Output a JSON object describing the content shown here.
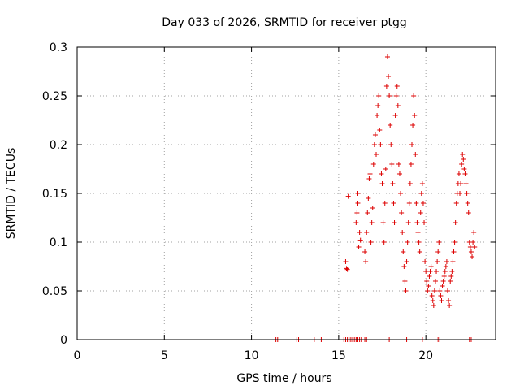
{
  "chart_data": {
    "type": "scatter",
    "title": "Day 033 of 2026, SRMTID for receiver ptgg",
    "xlabel": "GPS time / hours",
    "ylabel": "SRMTID / TECUs",
    "xlim": [
      0,
      24
    ],
    "ylim": [
      0,
      0.3
    ],
    "xticks": [
      0,
      5,
      10,
      15,
      20
    ],
    "xtick_labels": [
      "0",
      "5",
      "10",
      "15",
      "20"
    ],
    "yticks": [
      0,
      0.05,
      0.1,
      0.15,
      0.2,
      0.25,
      0.3
    ],
    "ytick_labels": [
      "0",
      "0.05",
      "0.1",
      "0.15",
      "0.2",
      "0.25",
      "0.3"
    ],
    "grid": true,
    "marker": "+",
    "series": [
      {
        "name": "SRMTID",
        "color": "#dd0000",
        "points": [
          [
            11.4,
            0
          ],
          [
            11.5,
            0
          ],
          [
            12.6,
            0
          ],
          [
            12.7,
            0
          ],
          [
            13.6,
            0
          ],
          [
            14.0,
            0
          ],
          [
            15.3,
            0
          ],
          [
            15.4,
            0
          ],
          [
            15.5,
            0
          ],
          [
            15.6,
            0
          ],
          [
            15.7,
            0
          ],
          [
            15.8,
            0
          ],
          [
            15.9,
            0
          ],
          [
            16.0,
            0
          ],
          [
            16.1,
            0
          ],
          [
            16.2,
            0
          ],
          [
            16.3,
            0
          ],
          [
            16.5,
            0
          ],
          [
            16.6,
            0
          ],
          [
            17.9,
            0
          ],
          [
            18.9,
            0
          ],
          [
            19.8,
            0
          ],
          [
            20.7,
            0
          ],
          [
            20.8,
            0
          ],
          [
            22.5,
            0
          ],
          [
            22.6,
            0
          ],
          [
            15.4,
            0.08
          ],
          [
            15.45,
            0.073
          ],
          [
            15.5,
            0.072
          ],
          [
            15.55,
            0.147
          ],
          [
            16.0,
            0.12
          ],
          [
            16.05,
            0.13
          ],
          [
            16.1,
            0.14
          ],
          [
            16.1,
            0.15
          ],
          [
            16.15,
            0.095
          ],
          [
            16.2,
            0.11
          ],
          [
            16.25,
            0.102
          ],
          [
            16.5,
            0.09
          ],
          [
            16.55,
            0.08
          ],
          [
            16.6,
            0.11
          ],
          [
            16.65,
            0.13
          ],
          [
            16.7,
            0.145
          ],
          [
            16.75,
            0.165
          ],
          [
            16.8,
            0.17
          ],
          [
            16.85,
            0.1
          ],
          [
            16.9,
            0.12
          ],
          [
            16.95,
            0.135
          ],
          [
            17.0,
            0.18
          ],
          [
            17.05,
            0.2
          ],
          [
            17.1,
            0.21
          ],
          [
            17.15,
            0.19
          ],
          [
            17.2,
            0.23
          ],
          [
            17.25,
            0.24
          ],
          [
            17.3,
            0.25
          ],
          [
            17.35,
            0.215
          ],
          [
            17.4,
            0.2
          ],
          [
            17.45,
            0.17
          ],
          [
            17.5,
            0.16
          ],
          [
            17.55,
            0.12
          ],
          [
            17.6,
            0.1
          ],
          [
            17.65,
            0.14
          ],
          [
            17.7,
            0.175
          ],
          [
            17.75,
            0.26
          ],
          [
            17.8,
            0.29
          ],
          [
            17.85,
            0.27
          ],
          [
            17.9,
            0.25
          ],
          [
            17.95,
            0.22
          ],
          [
            18.0,
            0.2
          ],
          [
            18.05,
            0.18
          ],
          [
            18.1,
            0.16
          ],
          [
            18.15,
            0.14
          ],
          [
            18.2,
            0.12
          ],
          [
            18.25,
            0.23
          ],
          [
            18.3,
            0.25
          ],
          [
            18.35,
            0.26
          ],
          [
            18.4,
            0.24
          ],
          [
            18.45,
            0.18
          ],
          [
            18.5,
            0.17
          ],
          [
            18.55,
            0.15
          ],
          [
            18.6,
            0.13
          ],
          [
            18.65,
            0.11
          ],
          [
            18.7,
            0.09
          ],
          [
            18.75,
            0.075
          ],
          [
            18.8,
            0.06
          ],
          [
            18.85,
            0.05
          ],
          [
            18.9,
            0.08
          ],
          [
            18.95,
            0.1
          ],
          [
            19.0,
            0.12
          ],
          [
            19.05,
            0.14
          ],
          [
            19.1,
            0.16
          ],
          [
            19.15,
            0.18
          ],
          [
            19.2,
            0.2
          ],
          [
            19.25,
            0.22
          ],
          [
            19.3,
            0.25
          ],
          [
            19.35,
            0.23
          ],
          [
            19.4,
            0.19
          ],
          [
            19.45,
            0.14
          ],
          [
            19.5,
            0.12
          ],
          [
            19.55,
            0.11
          ],
          [
            19.6,
            0.1
          ],
          [
            19.65,
            0.09
          ],
          [
            19.7,
            0.13
          ],
          [
            19.75,
            0.15
          ],
          [
            19.8,
            0.16
          ],
          [
            19.85,
            0.14
          ],
          [
            19.9,
            0.12
          ],
          [
            19.95,
            0.08
          ],
          [
            20.0,
            0.07
          ],
          [
            20.05,
            0.06
          ],
          [
            20.1,
            0.05
          ],
          [
            20.15,
            0.055
          ],
          [
            20.2,
            0.065
          ],
          [
            20.25,
            0.07
          ],
          [
            20.3,
            0.075
          ],
          [
            20.35,
            0.045
          ],
          [
            20.4,
            0.04
          ],
          [
            20.45,
            0.035
          ],
          [
            20.5,
            0.05
          ],
          [
            20.55,
            0.06
          ],
          [
            20.6,
            0.07
          ],
          [
            20.65,
            0.08
          ],
          [
            20.7,
            0.09
          ],
          [
            20.75,
            0.1
          ],
          [
            20.8,
            0.05
          ],
          [
            20.85,
            0.045
          ],
          [
            20.9,
            0.04
          ],
          [
            20.95,
            0.055
          ],
          [
            21.0,
            0.06
          ],
          [
            21.05,
            0.065
          ],
          [
            21.1,
            0.07
          ],
          [
            21.15,
            0.075
          ],
          [
            21.2,
            0.08
          ],
          [
            21.25,
            0.05
          ],
          [
            21.3,
            0.04
          ],
          [
            21.35,
            0.035
          ],
          [
            21.4,
            0.06
          ],
          [
            21.45,
            0.065
          ],
          [
            21.5,
            0.07
          ],
          [
            21.55,
            0.08
          ],
          [
            21.6,
            0.09
          ],
          [
            21.65,
            0.1
          ],
          [
            21.7,
            0.12
          ],
          [
            21.75,
            0.14
          ],
          [
            21.8,
            0.15
          ],
          [
            21.85,
            0.16
          ],
          [
            21.9,
            0.17
          ],
          [
            21.95,
            0.15
          ],
          [
            22.0,
            0.16
          ],
          [
            22.05,
            0.18
          ],
          [
            22.1,
            0.19
          ],
          [
            22.15,
            0.185
          ],
          [
            22.2,
            0.175
          ],
          [
            22.25,
            0.17
          ],
          [
            22.3,
            0.16
          ],
          [
            22.35,
            0.15
          ],
          [
            22.4,
            0.14
          ],
          [
            22.45,
            0.13
          ],
          [
            22.5,
            0.1
          ],
          [
            22.55,
            0.095
          ],
          [
            22.6,
            0.09
          ],
          [
            22.65,
            0.085
          ],
          [
            22.7,
            0.1
          ],
          [
            22.75,
            0.11
          ],
          [
            22.8,
            0.095
          ]
        ]
      }
    ]
  }
}
